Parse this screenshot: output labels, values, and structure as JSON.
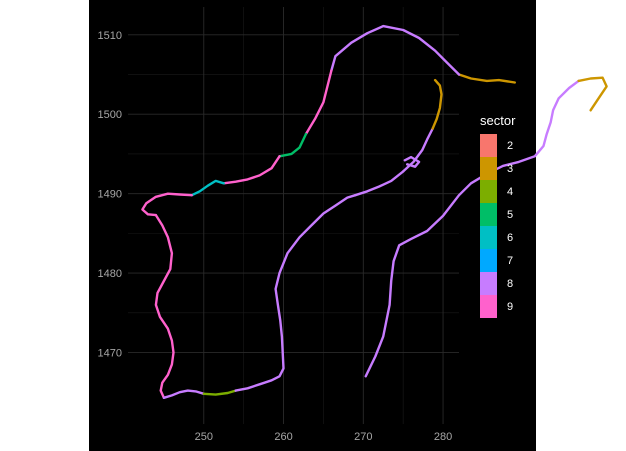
{
  "chart_data": {
    "type": "map",
    "x_ticks": [
      250,
      260,
      270,
      280
    ],
    "y_ticks": [
      1470,
      1480,
      1490,
      1500,
      1510
    ],
    "xlim": [
      240.5,
      282
    ],
    "ylim": [
      1461,
      1513.5
    ],
    "grid": true,
    "legend_position": "right",
    "legend": {
      "title": "sector",
      "entries": [
        {
          "label": "2",
          "color": "#F8766D"
        },
        {
          "label": "3",
          "color": "#CD9600"
        },
        {
          "label": "4",
          "color": "#7CAE00"
        },
        {
          "label": "5",
          "color": "#00BE67"
        },
        {
          "label": "6",
          "color": "#00BFC4"
        },
        {
          "label": "7",
          "color": "#00A9FF"
        },
        {
          "label": "8",
          "color": "#C77CFF"
        },
        {
          "label": "9",
          "color": "#FF61CC"
        }
      ]
    },
    "coastline_segments": [
      {
        "sector": "8",
        "points": [
          [
            270.3,
            1467.0
          ],
          [
            271.5,
            1469.5
          ],
          [
            272.5,
            1472.0
          ],
          [
            273.3,
            1476.0
          ],
          [
            273.5,
            1479.0
          ],
          [
            273.8,
            1481.5
          ],
          [
            274.5,
            1483.5
          ],
          [
            276.0,
            1484.3
          ],
          [
            278.0,
            1485.3
          ],
          [
            280.0,
            1487.2
          ],
          [
            282.0,
            1489.8
          ],
          [
            283.5,
            1491.3
          ],
          [
            285.5,
            1492.5
          ],
          [
            287.5,
            1493.5
          ],
          [
            289.5,
            1494.0
          ],
          [
            291.5,
            1494.7
          ],
          [
            292.6,
            1496.0
          ],
          [
            293.0,
            1497.5
          ],
          [
            293.5,
            1499.0
          ],
          [
            293.8,
            1500.5
          ],
          [
            294.5,
            1502.0
          ],
          [
            295.8,
            1503.3
          ],
          [
            297.0,
            1504.2
          ]
        ]
      },
      {
        "sector": "8",
        "points": [
          [
            275.2,
            1494.2
          ],
          [
            276.0,
            1494.6
          ],
          [
            277.0,
            1494.0
          ],
          [
            276.5,
            1493.4
          ],
          [
            275.5,
            1493.7
          ]
        ]
      },
      {
        "sector": "3",
        "points": [
          [
            297.0,
            1504.2
          ],
          [
            298.5,
            1504.5
          ],
          [
            300.0,
            1504.6
          ],
          [
            300.5,
            1503.5
          ],
          [
            299.5,
            1502.0
          ],
          [
            298.5,
            1500.5
          ]
        ]
      },
      {
        "sector": "3",
        "points": [
          [
            282.0,
            1505.0
          ],
          [
            283.5,
            1504.5
          ],
          [
            285.5,
            1504.2
          ],
          [
            287.0,
            1504.3
          ],
          [
            289.0,
            1504.0
          ]
        ]
      },
      {
        "sector": "8",
        "points": [
          [
            282.0,
            1505.0
          ],
          [
            280.5,
            1506.5
          ],
          [
            279.0,
            1508.0
          ],
          [
            277.0,
            1509.6
          ],
          [
            275.0,
            1510.6
          ],
          [
            272.5,
            1511.1
          ],
          [
            270.5,
            1510.2
          ],
          [
            268.5,
            1509.0
          ],
          [
            266.5,
            1507.3
          ],
          [
            266.0,
            1505.5
          ]
        ]
      },
      {
        "sector": "9",
        "points": [
          [
            266.0,
            1505.5
          ],
          [
            265.5,
            1503.5
          ],
          [
            265.0,
            1501.5
          ],
          [
            264.0,
            1499.5
          ],
          [
            262.8,
            1497.5
          ]
        ]
      },
      {
        "sector": "5",
        "points": [
          [
            262.8,
            1497.5
          ],
          [
            262.0,
            1495.8
          ],
          [
            261.0,
            1495.0
          ],
          [
            259.5,
            1494.7
          ]
        ]
      },
      {
        "sector": "9",
        "points": [
          [
            259.5,
            1494.7
          ],
          [
            258.5,
            1493.2
          ],
          [
            257.0,
            1492.3
          ],
          [
            255.5,
            1491.8
          ],
          [
            254.0,
            1491.5
          ],
          [
            252.5,
            1491.3
          ]
        ]
      },
      {
        "sector": "6",
        "points": [
          [
            252.5,
            1491.3
          ],
          [
            251.5,
            1491.6
          ],
          [
            250.5,
            1491.0
          ],
          [
            249.5,
            1490.3
          ],
          [
            248.5,
            1489.8
          ]
        ]
      },
      {
        "sector": "9",
        "points": [
          [
            248.5,
            1489.8
          ],
          [
            247.0,
            1489.9
          ],
          [
            245.5,
            1490.0
          ],
          [
            244.0,
            1489.6
          ],
          [
            242.8,
            1488.8
          ],
          [
            242.3,
            1488.0
          ],
          [
            243.0,
            1487.4
          ],
          [
            244.0,
            1487.3
          ]
        ]
      },
      {
        "sector": "9",
        "points": [
          [
            244.0,
            1487.3
          ],
          [
            244.8,
            1486.0
          ],
          [
            245.5,
            1484.5
          ],
          [
            246.0,
            1482.5
          ],
          [
            245.8,
            1480.5
          ],
          [
            245.0,
            1479.0
          ],
          [
            244.2,
            1477.5
          ],
          [
            244.0,
            1476.0
          ],
          [
            244.5,
            1474.5
          ],
          [
            245.5,
            1473.0
          ],
          [
            246.0,
            1471.5
          ],
          [
            246.2,
            1470.0
          ],
          [
            246.0,
            1468.5
          ],
          [
            245.5,
            1467.2
          ],
          [
            244.8,
            1466.2
          ],
          [
            244.6,
            1465.2
          ],
          [
            245.0,
            1464.3
          ]
        ]
      },
      {
        "sector": "8",
        "points": [
          [
            245.0,
            1464.3
          ],
          [
            246.0,
            1464.6
          ],
          [
            247.0,
            1465.0
          ],
          [
            248.0,
            1465.2
          ],
          [
            249.0,
            1465.1
          ],
          [
            250.0,
            1464.8
          ]
        ]
      },
      {
        "sector": "4",
        "points": [
          [
            250.0,
            1464.8
          ],
          [
            251.5,
            1464.7
          ],
          [
            253.0,
            1464.9
          ],
          [
            254.0,
            1465.2
          ]
        ]
      },
      {
        "sector": "8",
        "points": [
          [
            254.0,
            1465.2
          ],
          [
            255.5,
            1465.5
          ],
          [
            257.0,
            1466.0
          ],
          [
            258.5,
            1466.5
          ],
          [
            259.5,
            1467.0
          ],
          [
            260.0,
            1468.0
          ],
          [
            259.9,
            1470.0
          ],
          [
            259.8,
            1472.0
          ],
          [
            259.6,
            1474.0
          ],
          [
            259.3,
            1476.0
          ],
          [
            259.0,
            1478.0
          ],
          [
            259.5,
            1480.0
          ],
          [
            260.5,
            1482.5
          ],
          [
            262.0,
            1484.5
          ],
          [
            263.5,
            1486.0
          ],
          [
            265.0,
            1487.5
          ],
          [
            266.5,
            1488.5
          ],
          [
            268.0,
            1489.5
          ],
          [
            269.0,
            1489.8
          ]
        ]
      },
      {
        "sector": "8",
        "points": [
          [
            269.0,
            1489.8
          ],
          [
            270.5,
            1490.3
          ],
          [
            272.0,
            1490.9
          ],
          [
            273.5,
            1491.6
          ],
          [
            275.0,
            1492.8
          ]
        ]
      },
      {
        "sector": "8",
        "points": [
          [
            275.0,
            1492.8
          ],
          [
            276.3,
            1494.0
          ],
          [
            277.4,
            1495.5
          ],
          [
            278.0,
            1496.8
          ],
          [
            278.7,
            1498.2
          ]
        ]
      },
      {
        "sector": "3",
        "points": [
          [
            278.7,
            1498.2
          ],
          [
            279.2,
            1499.4
          ],
          [
            279.6,
            1500.8
          ],
          [
            279.8,
            1502.5
          ],
          [
            279.6,
            1503.6
          ],
          [
            279.0,
            1504.3
          ]
        ]
      }
    ]
  }
}
